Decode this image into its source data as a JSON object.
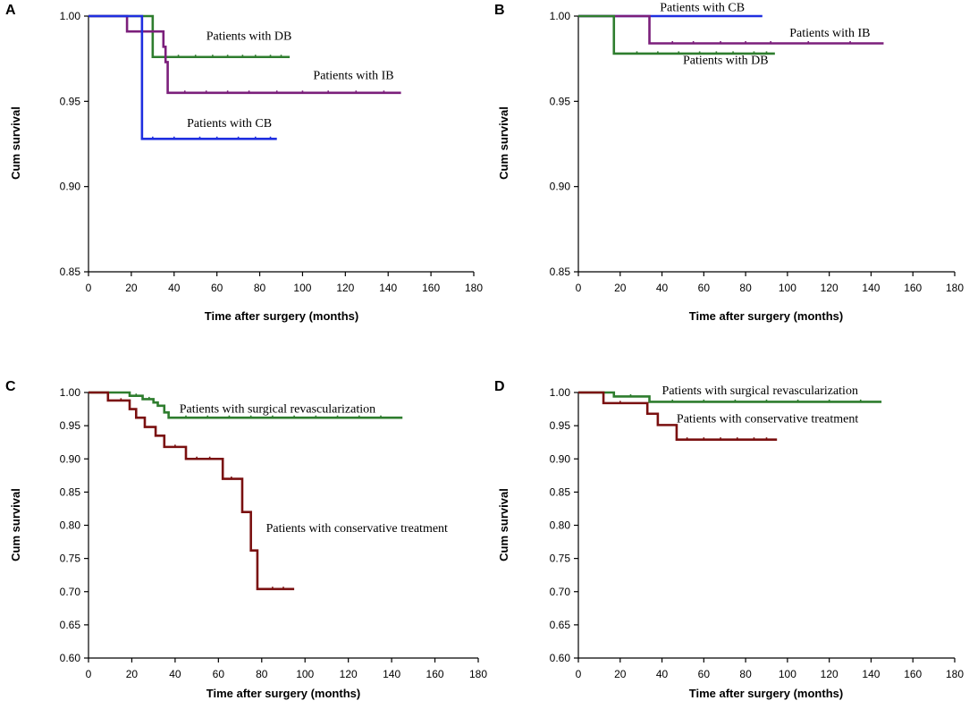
{
  "chart_data": [
    {
      "panel": "A",
      "type": "line",
      "subtype": "kaplan-meier",
      "xlabel": "Time after surgery (months)",
      "ylabel": "Cum survival",
      "xlim": [
        0,
        180
      ],
      "ylim": [
        0.85,
        1.0
      ],
      "xticks": [
        0,
        20,
        40,
        60,
        80,
        100,
        120,
        140,
        160,
        180
      ],
      "yticks": [
        0.85,
        0.9,
        0.95,
        1.0
      ],
      "xtick_labels": [
        "0",
        "20",
        "40",
        "60",
        "80",
        "100",
        "120",
        "140",
        "160",
        "180"
      ],
      "ytick_labels": [
        "0.85",
        "0.90",
        "0.95",
        "1.00"
      ],
      "series": [
        {
          "name": "Patients with DB",
          "label": "Patients with DB",
          "color": "#2e7d2e",
          "label_at": [
            55,
            0.986
          ],
          "steps": [
            [
              0,
              1.0
            ],
            [
              30,
              0.976
            ],
            [
              94,
              0.976
            ]
          ],
          "censored": [
            42,
            50,
            58,
            65,
            72,
            78,
            85,
            90
          ]
        },
        {
          "name": "Patients with IB",
          "label": "Patients with IB",
          "color": "#7b1f7b",
          "label_at": [
            105,
            0.963
          ],
          "steps": [
            [
              0,
              1.0
            ],
            [
              18,
              0.991
            ],
            [
              35,
              0.982
            ],
            [
              36,
              0.973
            ],
            [
              37,
              0.955
            ],
            [
              146,
              0.955
            ]
          ],
          "censored": [
            45,
            55,
            65,
            75,
            88,
            100,
            112,
            125,
            138
          ]
        },
        {
          "name": "Patients with CB",
          "label": "Patients with CB",
          "color": "#1f2fe0",
          "label_at": [
            46,
            0.935
          ],
          "steps": [
            [
              0,
              1.0
            ],
            [
              25,
              0.928
            ],
            [
              88,
              0.928
            ]
          ],
          "censored": [
            30,
            40,
            52,
            60,
            70,
            78,
            85
          ]
        }
      ]
    },
    {
      "panel": "B",
      "type": "line",
      "subtype": "kaplan-meier",
      "xlabel": "Time after surgery (months)",
      "ylabel": "Cum survival",
      "xlim": [
        0,
        180
      ],
      "ylim": [
        0.85,
        1.0
      ],
      "xticks": [
        0,
        20,
        40,
        60,
        80,
        100,
        120,
        140,
        160,
        180
      ],
      "yticks": [
        0.85,
        0.9,
        0.95,
        1.0
      ],
      "xtick_labels": [
        "0",
        "20",
        "40",
        "60",
        "80",
        "100",
        "120",
        "140",
        "160",
        "180"
      ],
      "ytick_labels": [
        "0.85",
        "0.90",
        "0.95",
        "1.00"
      ],
      "series": [
        {
          "name": "Patients with CB",
          "label": "Patients with CB",
          "color": "#1f2fe0",
          "label_at": [
            39,
            1.003
          ],
          "steps": [
            [
              0,
              1.0
            ],
            [
              88,
              1.0
            ]
          ],
          "censored": []
        },
        {
          "name": "Patients with IB",
          "label": "Patients with IB",
          "color": "#7b1f7b",
          "label_at": [
            101,
            0.988
          ],
          "steps": [
            [
              0,
              1.0
            ],
            [
              34,
              0.984
            ],
            [
              146,
              0.984
            ]
          ],
          "censored": [
            45,
            55,
            68,
            80,
            92,
            110,
            130
          ]
        },
        {
          "name": "Patients with DB",
          "label": "Patients with DB",
          "color": "#2e7d2e",
          "label_at": [
            50,
            0.972
          ],
          "steps": [
            [
              0,
              1.0
            ],
            [
              17,
              0.978
            ],
            [
              94,
              0.978
            ]
          ],
          "censored": [
            28,
            38,
            48,
            58,
            66,
            74,
            84,
            90
          ]
        }
      ]
    },
    {
      "panel": "C",
      "type": "line",
      "subtype": "kaplan-meier",
      "xlabel": "Time after surgery (months)",
      "ylabel": "Cum survival",
      "xlim": [
        0,
        180
      ],
      "ylim": [
        0.6,
        1.0
      ],
      "xticks": [
        0,
        20,
        40,
        60,
        80,
        100,
        120,
        140,
        160,
        180
      ],
      "yticks": [
        0.6,
        0.65,
        0.7,
        0.75,
        0.8,
        0.85,
        0.9,
        0.95,
        1.0
      ],
      "xtick_labels": [
        "0",
        "20",
        "40",
        "60",
        "80",
        "100",
        "120",
        "140",
        "160",
        "180"
      ],
      "ytick_labels": [
        "0.60",
        "0.65",
        "0.70",
        "0.75",
        "0.80",
        "0.85",
        "0.90",
        "0.95",
        "1.00"
      ],
      "series": [
        {
          "name": "Patients with surgical revascularization",
          "label": "Patients with surgical revascularization",
          "color": "#2e7d2e",
          "label_at": [
            42,
            0.97
          ],
          "steps": [
            [
              0,
              1.0
            ],
            [
              19,
              0.995
            ],
            [
              25,
              0.99
            ],
            [
              30,
              0.985
            ],
            [
              32,
              0.98
            ],
            [
              35,
              0.97
            ],
            [
              37,
              0.962
            ],
            [
              145,
              0.962
            ]
          ],
          "censored": [
            22,
            28,
            45,
            55,
            65,
            75,
            85,
            95,
            105,
            115,
            125,
            135
          ]
        },
        {
          "name": "Patients with conservative treatment",
          "label": "Patients with conservative treatment",
          "color": "#7a1010",
          "label_at": [
            82,
            0.79
          ],
          "steps": [
            [
              0,
              1.0
            ],
            [
              9,
              0.988
            ],
            [
              19,
              0.975
            ],
            [
              22,
              0.962
            ],
            [
              26,
              0.948
            ],
            [
              31,
              0.935
            ],
            [
              35,
              0.918
            ],
            [
              45,
              0.9
            ],
            [
              62,
              0.87
            ],
            [
              71,
              0.82
            ],
            [
              75,
              0.762
            ],
            [
              78,
              0.704
            ],
            [
              95,
              0.704
            ]
          ],
          "censored": [
            15,
            40,
            50,
            56,
            66,
            85,
            90
          ]
        }
      ]
    },
    {
      "panel": "D",
      "type": "line",
      "subtype": "kaplan-meier",
      "xlabel": "Time after surgery (months)",
      "ylabel": "Cum survival",
      "xlim": [
        0,
        180
      ],
      "ylim": [
        0.6,
        1.0
      ],
      "xticks": [
        0,
        20,
        40,
        60,
        80,
        100,
        120,
        140,
        160,
        180
      ],
      "yticks": [
        0.6,
        0.65,
        0.7,
        0.75,
        0.8,
        0.85,
        0.9,
        0.95,
        1.0
      ],
      "xtick_labels": [
        "0",
        "20",
        "40",
        "60",
        "80",
        "100",
        "120",
        "140",
        "160",
        "180"
      ],
      "ytick_labels": [
        "0.60",
        "0.65",
        "0.70",
        "0.75",
        "0.80",
        "0.85",
        "0.90",
        "0.95",
        "1.00"
      ],
      "series": [
        {
          "name": "Patients with surgical revascularization",
          "label": "Patients with surgical revascularization",
          "color": "#2e7d2e",
          "label_at": [
            40,
            0.997
          ],
          "steps": [
            [
              0,
              1.0
            ],
            [
              17,
              0.994
            ],
            [
              34,
              0.986
            ],
            [
              145,
              0.986
            ]
          ],
          "censored": [
            25,
            45,
            60,
            75,
            90,
            105,
            120,
            135
          ]
        },
        {
          "name": "Patients with conservative treatment",
          "label": "Patients with conservative treatment",
          "color": "#7a1010",
          "label_at": [
            47,
            0.955
          ],
          "steps": [
            [
              0,
              1.0
            ],
            [
              12,
              0.984
            ],
            [
              33,
              0.968
            ],
            [
              38,
              0.951
            ],
            [
              47,
              0.929
            ],
            [
              95,
              0.929
            ]
          ],
          "censored": [
            20,
            52,
            60,
            68,
            76,
            84,
            90
          ]
        }
      ]
    }
  ]
}
